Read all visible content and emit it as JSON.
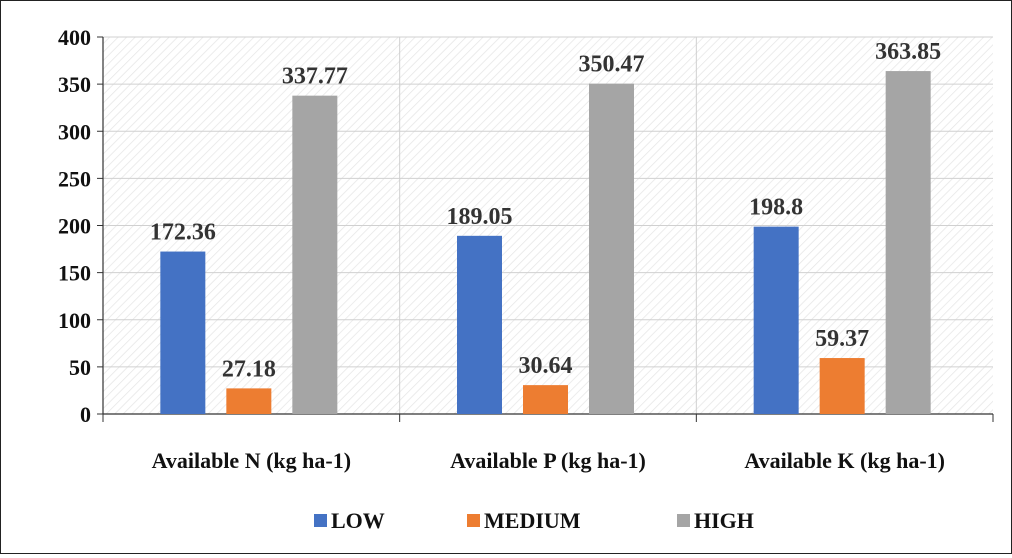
{
  "chart_data": {
    "type": "bar",
    "title": "",
    "xlabel": "",
    "ylabel": "",
    "categories": [
      "Available N (kg ha-1)",
      "Available P (kg ha-1)",
      "Available K (kg ha-1)"
    ],
    "series": [
      {
        "name": "LOW",
        "color": "#4472C4",
        "values": [
          172.36,
          189.05,
          198.8
        ],
        "labels": [
          "172.36",
          "189.05",
          "198.8"
        ]
      },
      {
        "name": "MEDIUM",
        "color": "#ED7D31",
        "values": [
          27.18,
          30.64,
          59.37
        ],
        "labels": [
          "27.18",
          "30.64",
          "59.37"
        ]
      },
      {
        "name": "HIGH",
        "color": "#A5A5A5",
        "values": [
          337.77,
          350.47,
          363.85
        ],
        "labels": [
          "337.77",
          "350.47",
          "363.85"
        ]
      }
    ],
    "ylim": [
      0,
      400
    ],
    "yticks": [
      "0",
      "50",
      "100",
      "150",
      "200",
      "250",
      "300",
      "350",
      "400"
    ],
    "grid": true,
    "legend_position": "bottom"
  }
}
